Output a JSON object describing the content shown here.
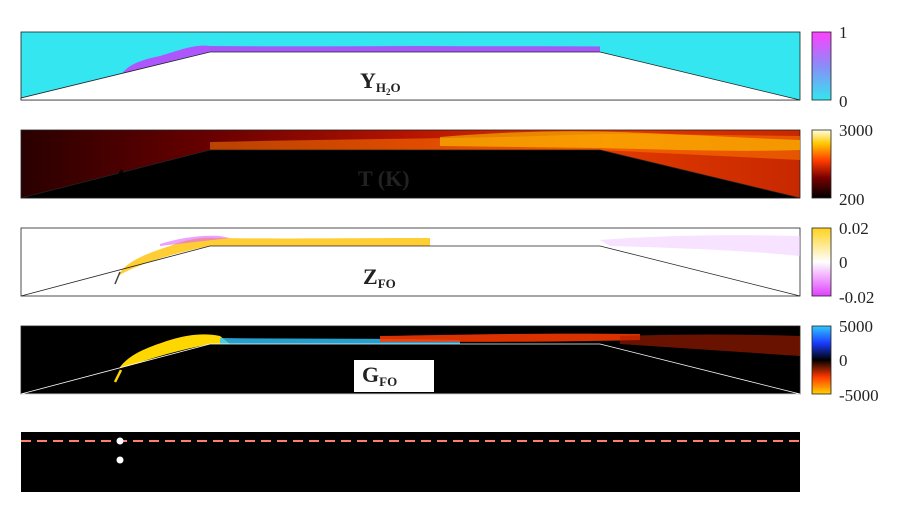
{
  "panels": [
    {
      "id": "h2o",
      "label": "Y",
      "label_sub": "H",
      "label_sub2": "2",
      "label_sub3": "O",
      "colorbar": {
        "max": "1",
        "min": "0"
      },
      "colors": {
        "background": "#33e6f0",
        "jet": "#c43cff"
      }
    },
    {
      "id": "temp",
      "label": "T (K)",
      "colorbar": {
        "max": "3000",
        "min": "200"
      },
      "colors": {
        "background": "#3a0000",
        "jet": "#ff5a00"
      }
    },
    {
      "id": "zfo",
      "label": "Z",
      "label_sub": "FO",
      "colorbar": {
        "max": "0.02",
        "mid": "0",
        "min": "-0.02"
      },
      "colors": {
        "background": "#ffffff",
        "jet": "#ffc81e"
      }
    },
    {
      "id": "gfo",
      "label": "G",
      "label_sub": "FO",
      "colorbar": {
        "max": "5000",
        "mid": "0",
        "min": "-5000"
      },
      "colors": {
        "background": "#000000",
        "jet": "#ffd700"
      }
    }
  ],
  "bottom_panel": {
    "colors": {
      "background": "#000000",
      "dash": "#ff7f6a",
      "dot": "#ffffff"
    }
  }
}
